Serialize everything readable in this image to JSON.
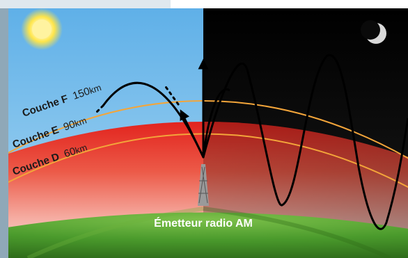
{
  "layers": [
    {
      "id": "f",
      "name": "Couche F",
      "altitude": "150",
      "unit": "km"
    },
    {
      "id": "e",
      "name": "Couche E",
      "altitude": "90",
      "unit": "km"
    },
    {
      "id": "d",
      "name": "Couche D",
      "altitude": "60",
      "unit": "km"
    }
  ],
  "transmitter_label": "Émetteur radio AM",
  "sky": {
    "day": "sun-icon",
    "night": "moon-icon"
  },
  "colors": {
    "day_sky": "#6fb8e6",
    "night_sky": "#050505",
    "layer_f": "#e8322c",
    "layer_line": "#f3a53a",
    "earth": "#4c9a2a",
    "waves": "#000000"
  }
}
